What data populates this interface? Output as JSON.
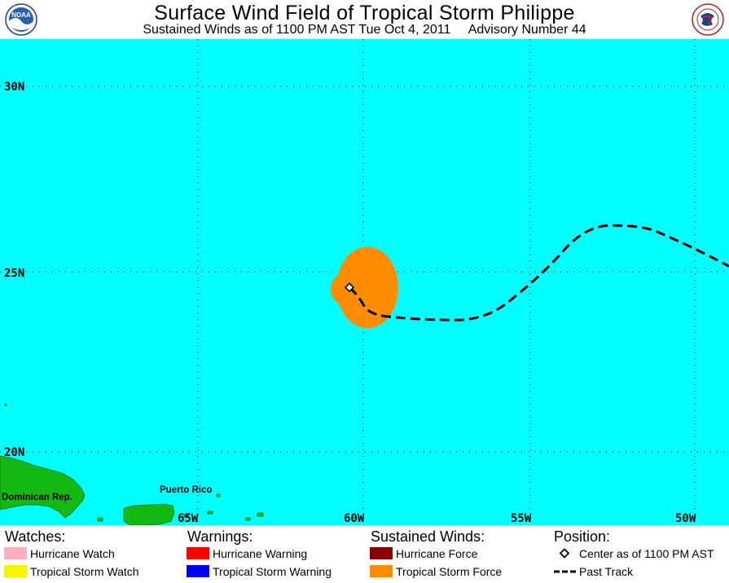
{
  "header": {
    "title": "Surface Wind Field of Tropical Storm Philippe",
    "subtitle": "Sustained Winds as of 1100 PM AST Tue Oct 4, 2011     Advisory Number 44",
    "left_logo_text": "NOAA",
    "right_logo_text": "NATIONAL WEATHER SERVICE"
  },
  "map": {
    "ocean_color": "#00ffff",
    "land_color": "#14b914",
    "lat_labels": [
      "30N",
      "25N",
      "20N"
    ],
    "lon_labels": [
      "65W",
      "60W",
      "55W",
      "50W"
    ],
    "places": [
      "Dominican Rep.",
      "Puerto Rico"
    ],
    "tropical_storm_wind_color": "#ff8c00",
    "center_marker": "diamond-icon"
  },
  "legend": {
    "watches": {
      "heading": "Watches:",
      "items": [
        {
          "label": "Hurricane Watch",
          "color": "#ffaec0"
        },
        {
          "label": "Tropical Storm Watch",
          "color": "#f5f500"
        }
      ]
    },
    "warnings": {
      "heading": "Warnings:",
      "items": [
        {
          "label": "Hurricane Warning",
          "color": "#ff0000"
        },
        {
          "label": "Tropical Storm Warning",
          "color": "#0000ff"
        }
      ]
    },
    "winds": {
      "heading": "Sustained Winds:",
      "items": [
        {
          "label": "Hurricane Force",
          "color": "#8b0000"
        },
        {
          "label": "Tropical Storm Force",
          "color": "#ff8c00"
        }
      ]
    },
    "position": {
      "heading": "Position:",
      "items": [
        {
          "label": "Center as of 1100 PM AST",
          "icon": "diamond-icon"
        },
        {
          "label": "Past Track",
          "icon": "dashed-line-icon"
        }
      ]
    }
  }
}
